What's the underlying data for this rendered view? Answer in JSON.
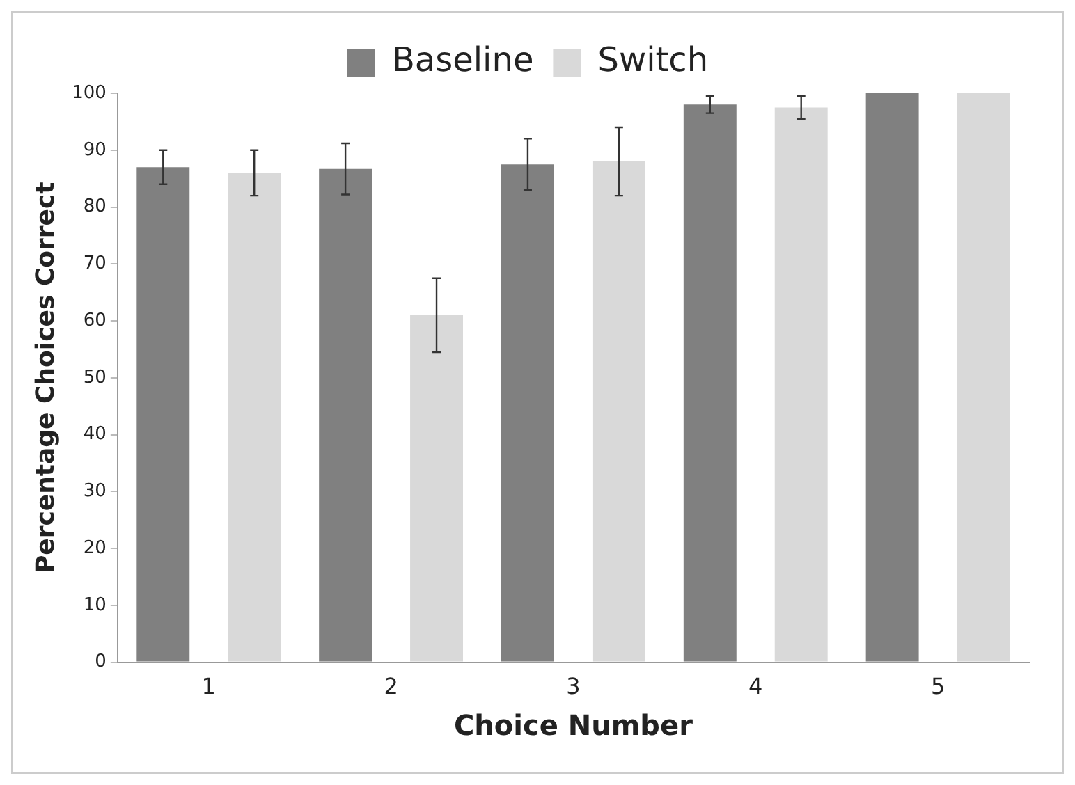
{
  "chart_data": {
    "type": "bar",
    "xlabel": "Choice Number",
    "ylabel": "Percentage Choices Correct",
    "categories": [
      "1",
      "2",
      "3",
      "4",
      "5"
    ],
    "series": [
      {
        "name": "Baseline",
        "color": "#808080",
        "values": [
          87,
          86.7,
          87.5,
          98,
          100
        ],
        "errors": [
          3,
          4.5,
          4.5,
          1.5,
          null
        ]
      },
      {
        "name": "Switch",
        "color": "#d9d9d9",
        "values": [
          86,
          61,
          88,
          97.5,
          100
        ],
        "errors": [
          4,
          6.5,
          6,
          2,
          null
        ]
      }
    ],
    "ylim": [
      0,
      100
    ],
    "yticks": [
      0,
      10,
      20,
      30,
      40,
      50,
      60,
      70,
      80,
      90,
      100
    ],
    "grid": false,
    "legend": "top"
  }
}
